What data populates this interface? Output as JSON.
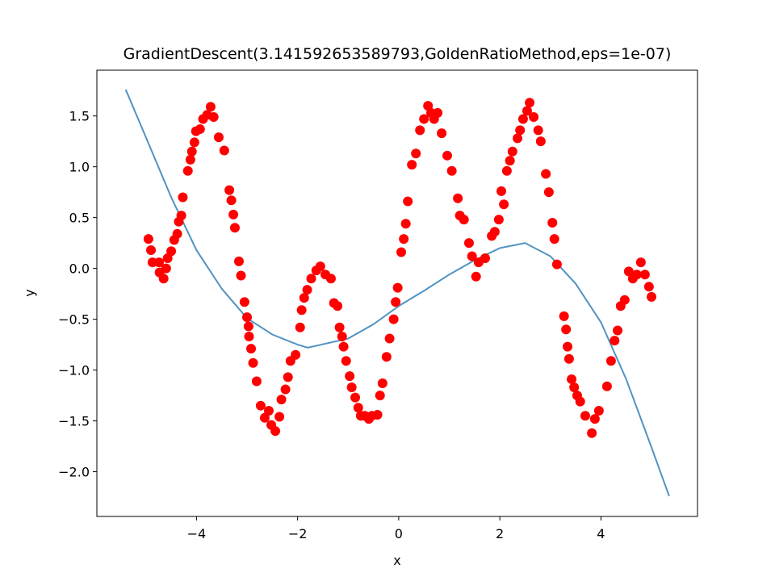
{
  "chart_data": {
    "type": "mixed",
    "title": "GradientDescent(3.141592653589793,GoldenRatioMethod,eps=1e-07)",
    "x_label": "x",
    "y_label": "y",
    "xlim": [
      -5.97,
      5.91
    ],
    "ylim": [
      -2.44,
      1.95
    ],
    "xticks": [
      {
        "value": -4,
        "label": "−4"
      },
      {
        "value": -2,
        "label": "−2"
      },
      0,
      2,
      4
    ],
    "yticks": [
      {
        "value": -2.0,
        "label": "−2.0"
      },
      {
        "value": -1.5,
        "label": "−1.5"
      },
      {
        "value": -1.0,
        "label": "−1.0"
      },
      {
        "value": -0.5,
        "label": "−0.5"
      },
      {
        "value": 0.0,
        "label": "0.0"
      },
      0.5,
      {
        "value": 1.0,
        "label": "1.0"
      },
      1.5
    ],
    "series": [
      {
        "type": "line",
        "color": "#5193c2",
        "x": [
          -5.4,
          -5.0,
          -4.5,
          -4.0,
          -3.5,
          -3.0,
          -2.5,
          -2.0,
          -1.8,
          -1.0,
          -0.5,
          0.0,
          0.5,
          1.0,
          1.5,
          2.0,
          2.5,
          3.0,
          3.5,
          4.0,
          4.5,
          5.0,
          5.35
        ],
        "values": [
          1.76,
          1.29,
          0.7,
          0.18,
          -0.2,
          -0.49,
          -0.65,
          -0.75,
          -0.78,
          -0.69,
          -0.55,
          -0.37,
          -0.22,
          -0.06,
          0.08,
          0.2,
          0.25,
          0.12,
          -0.15,
          -0.53,
          -1.09,
          -1.76,
          -2.24
        ]
      },
      {
        "type": "scatter",
        "color": "#ff0000",
        "x": [
          -4.95,
          -4.9,
          -4.87,
          -4.74,
          -4.73,
          -4.65,
          -4.6,
          -4.57,
          -4.5,
          -4.44,
          -4.38,
          -4.35,
          -4.3,
          -4.27,
          -4.17,
          -4.12,
          -4.09,
          -4.04,
          -4.01,
          -3.93,
          -3.87,
          -3.79,
          -3.72,
          -3.66,
          -3.56,
          -3.45,
          -3.35,
          -3.31,
          -3.27,
          -3.24,
          -3.16,
          -3.12,
          -3.05,
          -3.0,
          -2.97,
          -2.96,
          -2.92,
          -2.88,
          -2.81,
          -2.73,
          -2.65,
          -2.57,
          -2.52,
          -2.44,
          -2.36,
          -2.32,
          -2.24,
          -2.19,
          -2.14,
          -2.04,
          -1.95,
          -1.92,
          -1.87,
          -1.81,
          -1.73,
          -1.63,
          -1.55,
          -1.45,
          -1.34,
          -1.28,
          -1.21,
          -1.17,
          -1.12,
          -1.09,
          -1.04,
          -0.97,
          -0.93,
          -0.86,
          -0.8,
          -0.75,
          -0.67,
          -0.59,
          -0.53,
          -0.42,
          -0.37,
          -0.32,
          -0.24,
          -0.18,
          -0.1,
          -0.06,
          -0.02,
          0.05,
          0.1,
          0.14,
          0.18,
          0.26,
          0.34,
          0.42,
          0.5,
          0.58,
          0.64,
          0.7,
          0.77,
          0.85,
          0.96,
          1.05,
          1.17,
          1.21,
          1.29,
          1.39,
          1.45,
          1.53,
          1.58,
          1.71,
          1.84,
          1.9,
          1.98,
          2.03,
          2.08,
          2.14,
          2.2,
          2.25,
          2.35,
          2.4,
          2.46,
          2.54,
          2.59,
          2.67,
          2.76,
          2.81,
          2.91,
          2.97,
          3.04,
          3.08,
          3.13,
          3.27,
          3.31,
          3.34,
          3.37,
          3.42,
          3.47,
          3.53,
          3.59,
          3.69,
          3.82,
          3.88,
          3.96,
          4.12,
          4.2,
          4.27,
          4.33,
          4.39,
          4.47,
          4.55,
          4.63,
          4.71,
          4.79,
          4.87,
          4.95,
          5.0
        ],
        "values": [
          0.29,
          0.18,
          0.06,
          0.06,
          -0.04,
          -0.1,
          0,
          0.1,
          0.17,
          0.28,
          0.34,
          0.46,
          0.52,
          0.7,
          0.96,
          1.07,
          1.15,
          1.24,
          1.35,
          1.37,
          1.47,
          1.51,
          1.59,
          1.49,
          1.29,
          1.16,
          0.77,
          0.67,
          0.53,
          0.4,
          0.07,
          -0.07,
          -0.33,
          -0.48,
          -0.57,
          -0.67,
          -0.79,
          -0.93,
          -1.11,
          -1.35,
          -1.47,
          -1.4,
          -1.54,
          -1.6,
          -1.46,
          -1.29,
          -1.19,
          -1.07,
          -0.91,
          -0.85,
          -0.58,
          -0.41,
          -0.29,
          -0.21,
          -0.1,
          -0.02,
          0.02,
          -0.06,
          -0.1,
          -0.34,
          -0.37,
          -0.58,
          -0.67,
          -0.77,
          -0.91,
          -1.06,
          -1.17,
          -1.27,
          -1.37,
          -1.45,
          -1.45,
          -1.48,
          -1.45,
          -1.44,
          -1.25,
          -1.13,
          -0.87,
          -0.69,
          -0.5,
          -0.33,
          -0.19,
          0.16,
          0.29,
          0.44,
          0.66,
          1.02,
          1.13,
          1.36,
          1.47,
          1.6,
          1.53,
          1.47,
          1.53,
          1.33,
          1.11,
          0.96,
          0.69,
          0.52,
          0.48,
          0.25,
          0.12,
          -0.08,
          0.06,
          0.1,
          0.32,
          0.36,
          0.48,
          0.76,
          0.63,
          0.96,
          1.06,
          1.15,
          1.28,
          1.36,
          1.47,
          1.55,
          1.63,
          1.49,
          1.36,
          1.25,
          0.93,
          0.75,
          0.45,
          0.29,
          0.04,
          -0.47,
          -0.6,
          -0.77,
          -0.89,
          -1.09,
          -1.17,
          -1.25,
          -1.31,
          -1.45,
          -1.62,
          -1.48,
          -1.4,
          -1.16,
          -0.91,
          -0.71,
          -0.61,
          -0.37,
          -0.31,
          -0.03,
          -0.1,
          -0.06,
          0.06,
          -0.06,
          -0.18,
          -0.28
        ]
      }
    ]
  }
}
